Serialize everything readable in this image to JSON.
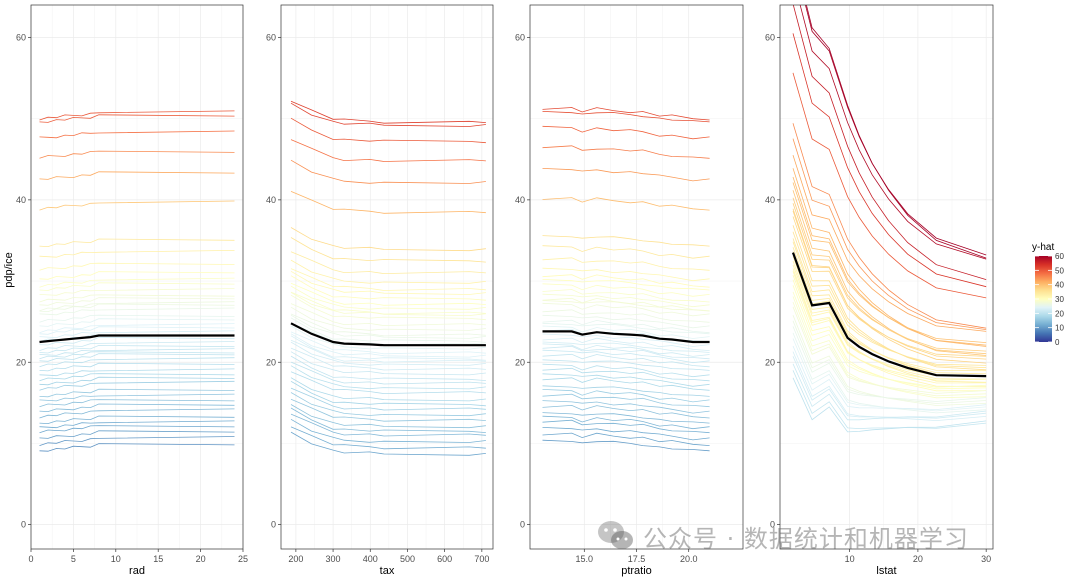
{
  "chart_data": {
    "type": "line",
    "ylabel": "pdp/ice",
    "ylim": [
      -3,
      64
    ],
    "yticks": [
      0,
      20,
      40,
      60
    ],
    "grid": true,
    "legend": {
      "title": "y-hat",
      "placement": "right",
      "range": [
        0,
        60
      ],
      "ticks": [
        0,
        10,
        20,
        30,
        40,
        50,
        60
      ],
      "colors": [
        "#313695",
        "#4575b4",
        "#74add1",
        "#abd9e9",
        "#e0f3f8",
        "#ffffbf",
        "#fee090",
        "#fdae61",
        "#f46d43",
        "#d73027",
        "#a50026"
      ]
    },
    "ice_offsets": [
      27.5,
      27.1,
      25.1,
      22.7,
      20.0,
      16.4,
      11.8,
      10.4,
      8.9,
      7.7,
      6.9,
      6.4,
      5.7,
      5.0,
      4.5,
      4.0,
      3.8,
      3.3,
      2.5,
      1.9,
      1.3,
      1.0,
      0.5,
      0.1,
      -0.4,
      -0.9,
      -1.3,
      -1.7,
      -2.0,
      -2.4,
      -2.9,
      -3.5,
      -4.2,
      -4.7,
      -5.3,
      -5.8,
      -6.7,
      -7.3,
      -7.9,
      -8.6,
      -9.2,
      -10.0,
      -10.6,
      -11.1,
      -11.9,
      -12.6,
      -13.4
    ],
    "panels": [
      {
        "xlabel": "rad",
        "xlim": [
          0,
          25
        ],
        "xticks": [
          0,
          5,
          10,
          15,
          20,
          25
        ],
        "x": [
          1,
          2,
          3,
          4,
          5,
          6,
          7,
          8,
          24
        ],
        "pdp": [
          22.5,
          22.6,
          22.7,
          22.8,
          22.9,
          23.0,
          23.1,
          23.3,
          23.3
        ]
      },
      {
        "xlabel": "tax",
        "xlim": [
          160,
          730
        ],
        "xticks": [
          200,
          300,
          400,
          500,
          600,
          700
        ],
        "x": [
          187,
          242,
          300,
          330,
          398,
          437,
          666,
          711
        ],
        "pdp": [
          24.8,
          23.5,
          22.5,
          22.3,
          22.2,
          22.1,
          22.1,
          22.1
        ]
      },
      {
        "xlabel": "ptratio",
        "xlim": [
          12.4,
          22.6
        ],
        "xticks": [
          15.0,
          17.5,
          20.0
        ],
        "x": [
          13.0,
          14.4,
          14.9,
          15.6,
          16.4,
          17.2,
          17.8,
          18.6,
          19.2,
          20.2,
          21.0
        ],
        "pdp": [
          23.8,
          23.8,
          23.4,
          23.7,
          23.5,
          23.4,
          23.3,
          22.9,
          22.8,
          22.5,
          22.5
        ]
      },
      {
        "xlabel": "lstat",
        "xlim": [
          -0.2,
          31
        ],
        "xticks": [
          10,
          20,
          30
        ],
        "x": [
          1.7,
          4.5,
          7.0,
          9.7,
          11.4,
          13.3,
          15.7,
          18.5,
          22.7,
          30.0
        ],
        "pdp": [
          33.5,
          27.0,
          27.3,
          23.0,
          21.9,
          21.0,
          20.1,
          19.3,
          18.4,
          18.3
        ]
      }
    ]
  },
  "watermark": {
    "text": "公众号 · 数据统计和机器学习"
  }
}
